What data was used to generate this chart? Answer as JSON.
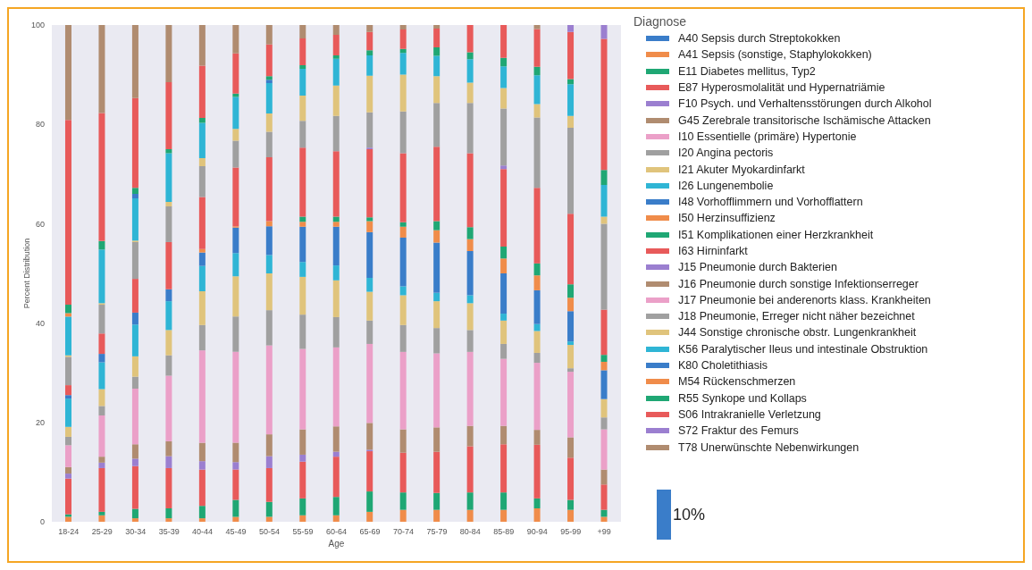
{
  "chart_data": {
    "type": "bar",
    "stacked": true,
    "xlabel": "Age",
    "ylabel": "Percent Distribution",
    "legend_title": "Diagnose",
    "legend": "right",
    "annotations": [
      "10%"
    ],
    "categories": [
      "18-24",
      "25-29",
      "30-34",
      "35-39",
      "40-44",
      "45-49",
      "50-54",
      "55-59",
      "60-64",
      "65-69",
      "70-74",
      "75-79",
      "80-84",
      "85-89",
      "90-94",
      "95-99",
      "+99"
    ],
    "ylim": [
      0,
      100
    ],
    "yticks": [
      0,
      20,
      40,
      60,
      80,
      100
    ],
    "series": [
      {
        "name": "A40 Sepsis durch Streptokokken",
        "color": "#3a7dc9",
        "values": [
          0,
          0,
          0,
          0,
          0,
          0,
          0,
          0,
          0,
          0,
          0,
          0,
          0,
          0,
          0,
          0,
          0
        ]
      },
      {
        "name": "A41 Sepsis (sonstige, Staphylokokken)",
        "color": "#f08c4a",
        "values": [
          1,
          1.3,
          0.7,
          0.7,
          0.7,
          1,
          1,
          1.3,
          1.3,
          2,
          2.4,
          2.4,
          2.4,
          2.4,
          2.7,
          2.4,
          1
        ]
      },
      {
        "name": "E11 Diabetes mellitus, Typ2",
        "color": "#1fa774",
        "values": [
          0.5,
          0.7,
          1.9,
          2,
          2.5,
          3.4,
          3,
          3.4,
          3.7,
          4.1,
          3.5,
          3.4,
          3.5,
          3.5,
          2,
          2,
          1.4
        ]
      },
      {
        "name": "E87 Hyperosmolalität und Hypernatriämie",
        "color": "#e85a5a",
        "values": [
          7.2,
          8.8,
          8.6,
          8.1,
          7.3,
          6.1,
          6.8,
          7.4,
          8.1,
          8.1,
          8,
          8.3,
          9.3,
          9.7,
          10.8,
          8.5,
          5.1
        ]
      },
      {
        "name": "F10 Psych. und Verhaltensstörungen durch Alkohol",
        "color": "#9b7fd0",
        "values": [
          1,
          1.1,
          1.5,
          2.4,
          1.7,
          1.5,
          2.4,
          1.4,
          1,
          0.3,
          0,
          0,
          0,
          0,
          0,
          0,
          0
        ]
      },
      {
        "name": "G45 Zerebrale transitorische Ischämische Attacken",
        "color": "#b08c70",
        "values": [
          1.3,
          1.2,
          2.9,
          3,
          3.7,
          3.9,
          4.4,
          5.1,
          5.1,
          5.4,
          4.7,
          4.9,
          4.1,
          3.7,
          3,
          4.1,
          3
        ]
      },
      {
        "name": "I10 Essentielle (primäre) Hypertonie",
        "color": "#eba0c8",
        "values": [
          4.4,
          8.3,
          11.2,
          13.2,
          18.6,
          18.3,
          17.9,
          16.2,
          15.9,
          15.9,
          15.6,
          14.9,
          14.9,
          13.5,
          13.5,
          13.2,
          8.1
        ]
      },
      {
        "name": "I20 Angina pectoris",
        "color": "#a0a0a0",
        "values": [
          1.7,
          1.9,
          2.4,
          4.1,
          5.1,
          7.1,
          7.1,
          6.9,
          6.1,
          4.7,
          5.4,
          5.1,
          4.4,
          3,
          2,
          0.7,
          2.4
        ]
      },
      {
        "name": "I21 Akuter Myokardinfarkt",
        "color": "#e0c47c",
        "values": [
          2,
          3.4,
          4.1,
          5.1,
          6.8,
          8.1,
          7.4,
          7.6,
          7.4,
          5.8,
          6,
          5.4,
          5.4,
          4.7,
          4.4,
          4.7,
          3.7
        ]
      },
      {
        "name": "I26 Lungenembolie",
        "color": "#2fb5d5",
        "values": [
          5.7,
          5.4,
          6.4,
          5.8,
          5.1,
          4.7,
          3.7,
          3,
          3,
          2.8,
          1.8,
          1.7,
          1.6,
          1.4,
          1.4,
          0.7,
          0
        ]
      },
      {
        "name": "I48 Vorhofflimmern und Vorhofflattern",
        "color": "#3a7dc9",
        "values": [
          0.7,
          1.7,
          2.4,
          2.4,
          2.7,
          5.1,
          5.8,
          7.1,
          7.8,
          9.2,
          9.8,
          10.1,
          8.9,
          8.1,
          6.8,
          6.1,
          5.8
        ]
      },
      {
        "name": "I50 Herzinsuffizienz",
        "color": "#f08c4a",
        "values": [
          0,
          0,
          0,
          0,
          0.7,
          0.3,
          1,
          1,
          1,
          2.2,
          2.2,
          2.5,
          2.4,
          3,
          3,
          2.7,
          1.7
        ]
      },
      {
        "name": "I51 Komplikationen einer Herzkrankheit",
        "color": "#1fa774",
        "values": [
          0,
          0,
          0,
          0,
          0,
          0,
          0,
          1,
          1,
          0.8,
          0.9,
          1.8,
          2.4,
          2.4,
          2.4,
          2.7,
          1.4
        ]
      },
      {
        "name": "I63 Hirninfarkt",
        "color": "#e85a5a",
        "values": [
          2,
          4.1,
          6.8,
          9.5,
          10.5,
          11.8,
          12.9,
          13.9,
          13.2,
          13.7,
          13.9,
          15,
          14.9,
          15.6,
          15.2,
          14.2,
          9.1
        ]
      },
      {
        "name": "J15 Pneumonie durch Bakterien",
        "color": "#9b7fd0",
        "values": [
          0,
          0,
          0,
          0,
          0,
          0,
          0,
          0,
          0,
          0.3,
          0,
          0,
          0,
          0.7,
          0,
          0,
          0
        ]
      },
      {
        "name": "J16 Pneumonie durch sonstige Infektionserreger",
        "color": "#b08c70",
        "values": [
          0,
          0,
          0,
          0,
          0,
          0,
          0,
          0,
          0,
          0,
          0,
          0,
          0,
          0,
          0,
          0,
          0
        ]
      },
      {
        "name": "J17 Pneumonie bei anderenorts klass. Krankheiten",
        "color": "#eba0c8",
        "values": [
          0,
          0,
          0,
          0,
          0,
          0,
          0,
          0,
          0,
          0,
          0,
          0,
          0,
          0,
          0,
          0,
          0
        ]
      },
      {
        "name": "J18 Pneumonie, Erreger nicht näher bezeichnet",
        "color": "#a0a0a0",
        "values": [
          5.7,
          5.8,
          7.4,
          7.2,
          6.2,
          5.4,
          5.1,
          5.4,
          7.1,
          7.1,
          8.4,
          8.8,
          10.1,
          11.5,
          14.2,
          17.3,
          17.3
        ]
      },
      {
        "name": "J44 Sonstige chronische obstr. Lungenkrankheit",
        "color": "#e0c47c",
        "values": [
          0.3,
          0.3,
          0.3,
          0.9,
          1.6,
          2.4,
          3.7,
          5.1,
          6.1,
          7.4,
          7.4,
          5.4,
          4.1,
          4.1,
          2.7,
          2.4,
          1.4
        ]
      },
      {
        "name": "K56 Paralytischer Ileus und intestinale Obstruktion",
        "color": "#2fb5d5",
        "values": [
          7.8,
          10.8,
          8.5,
          9.8,
          7.1,
          6.4,
          6.1,
          5.4,
          5.4,
          4.1,
          4.4,
          4.1,
          4.7,
          4.4,
          5.8,
          6.4,
          6.4
        ]
      },
      {
        "name": "K80 Choletithiasis",
        "color": "#3a7dc9",
        "values": [
          0,
          0,
          0.9,
          0,
          0,
          0,
          0.7,
          0,
          0,
          0,
          0,
          0,
          0,
          0,
          0,
          0,
          0
        ]
      },
      {
        "name": "M54 Rückenschmerzen",
        "color": "#f08c4a",
        "values": [
          0.7,
          0,
          0,
          0,
          0,
          0,
          0,
          0,
          0,
          0,
          0,
          0,
          0,
          0,
          0,
          0,
          0
        ]
      },
      {
        "name": "R55 Synkope und Kollaps",
        "color": "#1fa774",
        "values": [
          1.7,
          1.7,
          1.2,
          0.8,
          1,
          0.7,
          0.7,
          0.7,
          0.7,
          1,
          0.8,
          1.7,
          1.4,
          1.7,
          1.7,
          1,
          3
        ]
      },
      {
        "name": "S06 Intrakranielle Verletzung",
        "color": "#e85a5a",
        "values": [
          37.2,
          25.8,
          18.1,
          13.5,
          10.5,
          8.1,
          6.4,
          5.4,
          4.1,
          3.7,
          3.9,
          3.8,
          5.5,
          6.6,
          7.6,
          9.5,
          26.4
        ]
      },
      {
        "name": "S72 Fraktur des Femurs",
        "color": "#9b7fd0",
        "values": [
          0,
          0,
          0,
          0,
          0,
          0,
          0,
          0,
          0,
          0,
          0,
          0,
          0,
          0,
          0,
          1.4,
          2.8
        ]
      },
      {
        "name": "T78 Unerwünschte Nebenwirkungen",
        "color": "#b08c70",
        "values": [
          19.1,
          17.7,
          14.7,
          11.5,
          8.2,
          5.7,
          3.9,
          2.7,
          2,
          1.4,
          0.9,
          0.7,
          0,
          0,
          0.8,
          0,
          0
        ]
      }
    ]
  }
}
